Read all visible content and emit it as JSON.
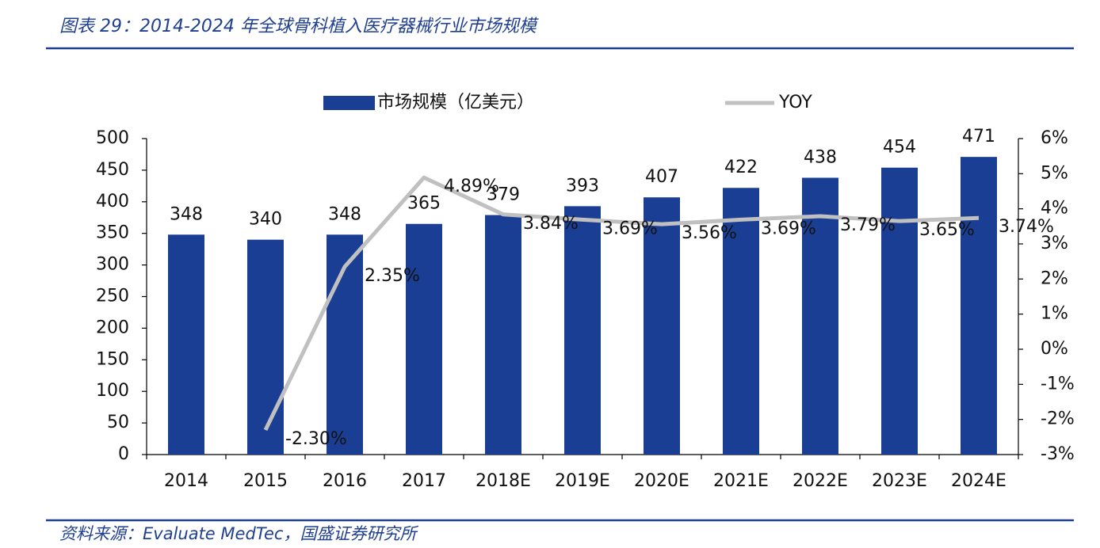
{
  "chart_data": {
    "type": "bar",
    "title": "图表 29：2014-2024 年全球骨科植入医疗器械行业市场规模",
    "source": "资料来源：Evaluate MedTec，国盛证券研究所",
    "categories": [
      "2014",
      "2015",
      "2016",
      "2017",
      "2018E",
      "2019E",
      "2020E",
      "2021E",
      "2022E",
      "2023E",
      "2024E"
    ],
    "series": [
      {
        "name": "市场规模（亿美元）",
        "type": "bar",
        "color": "#1a3e94",
        "values": [
          348,
          340,
          348,
          365,
          379,
          393,
          407,
          422,
          438,
          454,
          471
        ]
      },
      {
        "name": "YOY",
        "type": "line",
        "axis": "y2",
        "color": "#c0c0c0",
        "values": [
          null,
          -2.3,
          2.35,
          4.89,
          3.84,
          3.69,
          3.56,
          3.69,
          3.79,
          3.65,
          3.74
        ],
        "value_labels": [
          null,
          "-2.30%",
          "2.35%",
          "4.89%",
          "3.84%",
          "3.69%",
          "3.56%",
          "3.69%",
          "3.79%",
          "3.65%",
          "3.74%"
        ]
      }
    ],
    "ylim": [
      0,
      500
    ],
    "yticks": [
      0,
      50,
      100,
      150,
      200,
      250,
      300,
      350,
      400,
      450,
      500
    ],
    "y2lim": [
      -3,
      6
    ],
    "y2ticks": [
      {
        "value": -3,
        "label": "-3%"
      },
      {
        "value": -2,
        "label": "-2%"
      },
      {
        "value": -1,
        "label": "-1%"
      },
      {
        "value": 0,
        "label": "0%"
      },
      {
        "value": 1,
        "label": "1%"
      },
      {
        "value": 2,
        "label": "2%"
      },
      {
        "value": 3,
        "label": "3%"
      },
      {
        "value": 4,
        "label": "4%"
      },
      {
        "value": 5,
        "label": "5%"
      },
      {
        "value": 6,
        "label": "6%"
      }
    ],
    "legend": "top"
  }
}
